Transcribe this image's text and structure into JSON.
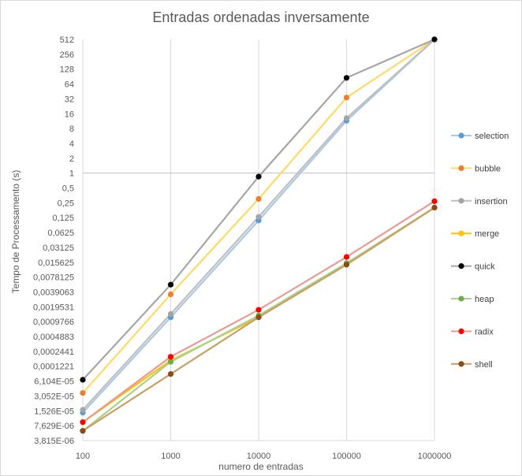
{
  "chart_data": {
    "type": "line",
    "title": "Entradas ordenadas inversamente",
    "xlabel": "numero de entradas",
    "ylabel": "Tempo de Processamento (s)",
    "x_scale": "log10",
    "y_scale": "log2",
    "x": [
      100,
      1000,
      10000,
      100000,
      1000000
    ],
    "x_tick_labels": [
      "100",
      "1000",
      "10000",
      "100000",
      "1000000"
    ],
    "ylim": [
      3.815e-06,
      512
    ],
    "y_tick_labels": [
      "512",
      "256",
      "128",
      "64",
      "32",
      "16",
      "8",
      "4",
      "2",
      "1",
      "0,5",
      "0,25",
      "0,125",
      "0,0625",
      "0,03125",
      "0,015625",
      "0,0078125",
      "0,0039063",
      "0,0019531",
      "0,0009766",
      "0,0004883",
      "0,0002441",
      "0,0001221",
      "6,104E-05",
      "3,052E-05",
      "1,526E-05",
      "7,629E-06",
      "3,815E-06"
    ],
    "grid": "vertical",
    "legend_position": "right",
    "series": [
      {
        "name": "selection",
        "color": "#5b9bd5",
        "values": [
          1.4e-05,
          0.0012,
          0.11,
          11.5,
          512
        ]
      },
      {
        "name": "bubble",
        "color": "#ed7d31",
        "values": [
          3.5e-05,
          0.0035,
          0.3,
          34,
          512
        ]
      },
      {
        "name": "insertion",
        "color": "#a5a5a5",
        "values": [
          1.6e-05,
          0.0014,
          0.13,
          13,
          512
        ]
      },
      {
        "name": "merge",
        "color": "#ffc000",
        "values": [
          9e-06,
          0.00016,
          0.0012,
          0.014,
          0.2
        ]
      },
      {
        "name": "quick",
        "color": "#000000",
        "values": [
          6.5e-05,
          0.0055,
          0.85,
          85,
          512
        ]
      },
      {
        "name": "heap",
        "color": "#70ad47",
        "values": [
          6e-06,
          0.00015,
          0.0013,
          0.015,
          0.2
        ]
      },
      {
        "name": "radix",
        "color": "#ff0000",
        "values": [
          9e-06,
          0.00019,
          0.0017,
          0.02,
          0.27
        ]
      },
      {
        "name": "shell",
        "color": "#8c4a16",
        "values": [
          6e-06,
          8.5e-05,
          0.0012,
          0.014,
          0.2
        ]
      }
    ],
    "line_colors": {
      "selection": "#a9c8e4",
      "bubble": "#ffd966",
      "insertion": "#bfbfbf",
      "merge": "#ffc000",
      "quick": "#a6a6a6",
      "heap": "#a9d18e",
      "radix": "#e89a96",
      "shell": "#c9a063"
    }
  }
}
